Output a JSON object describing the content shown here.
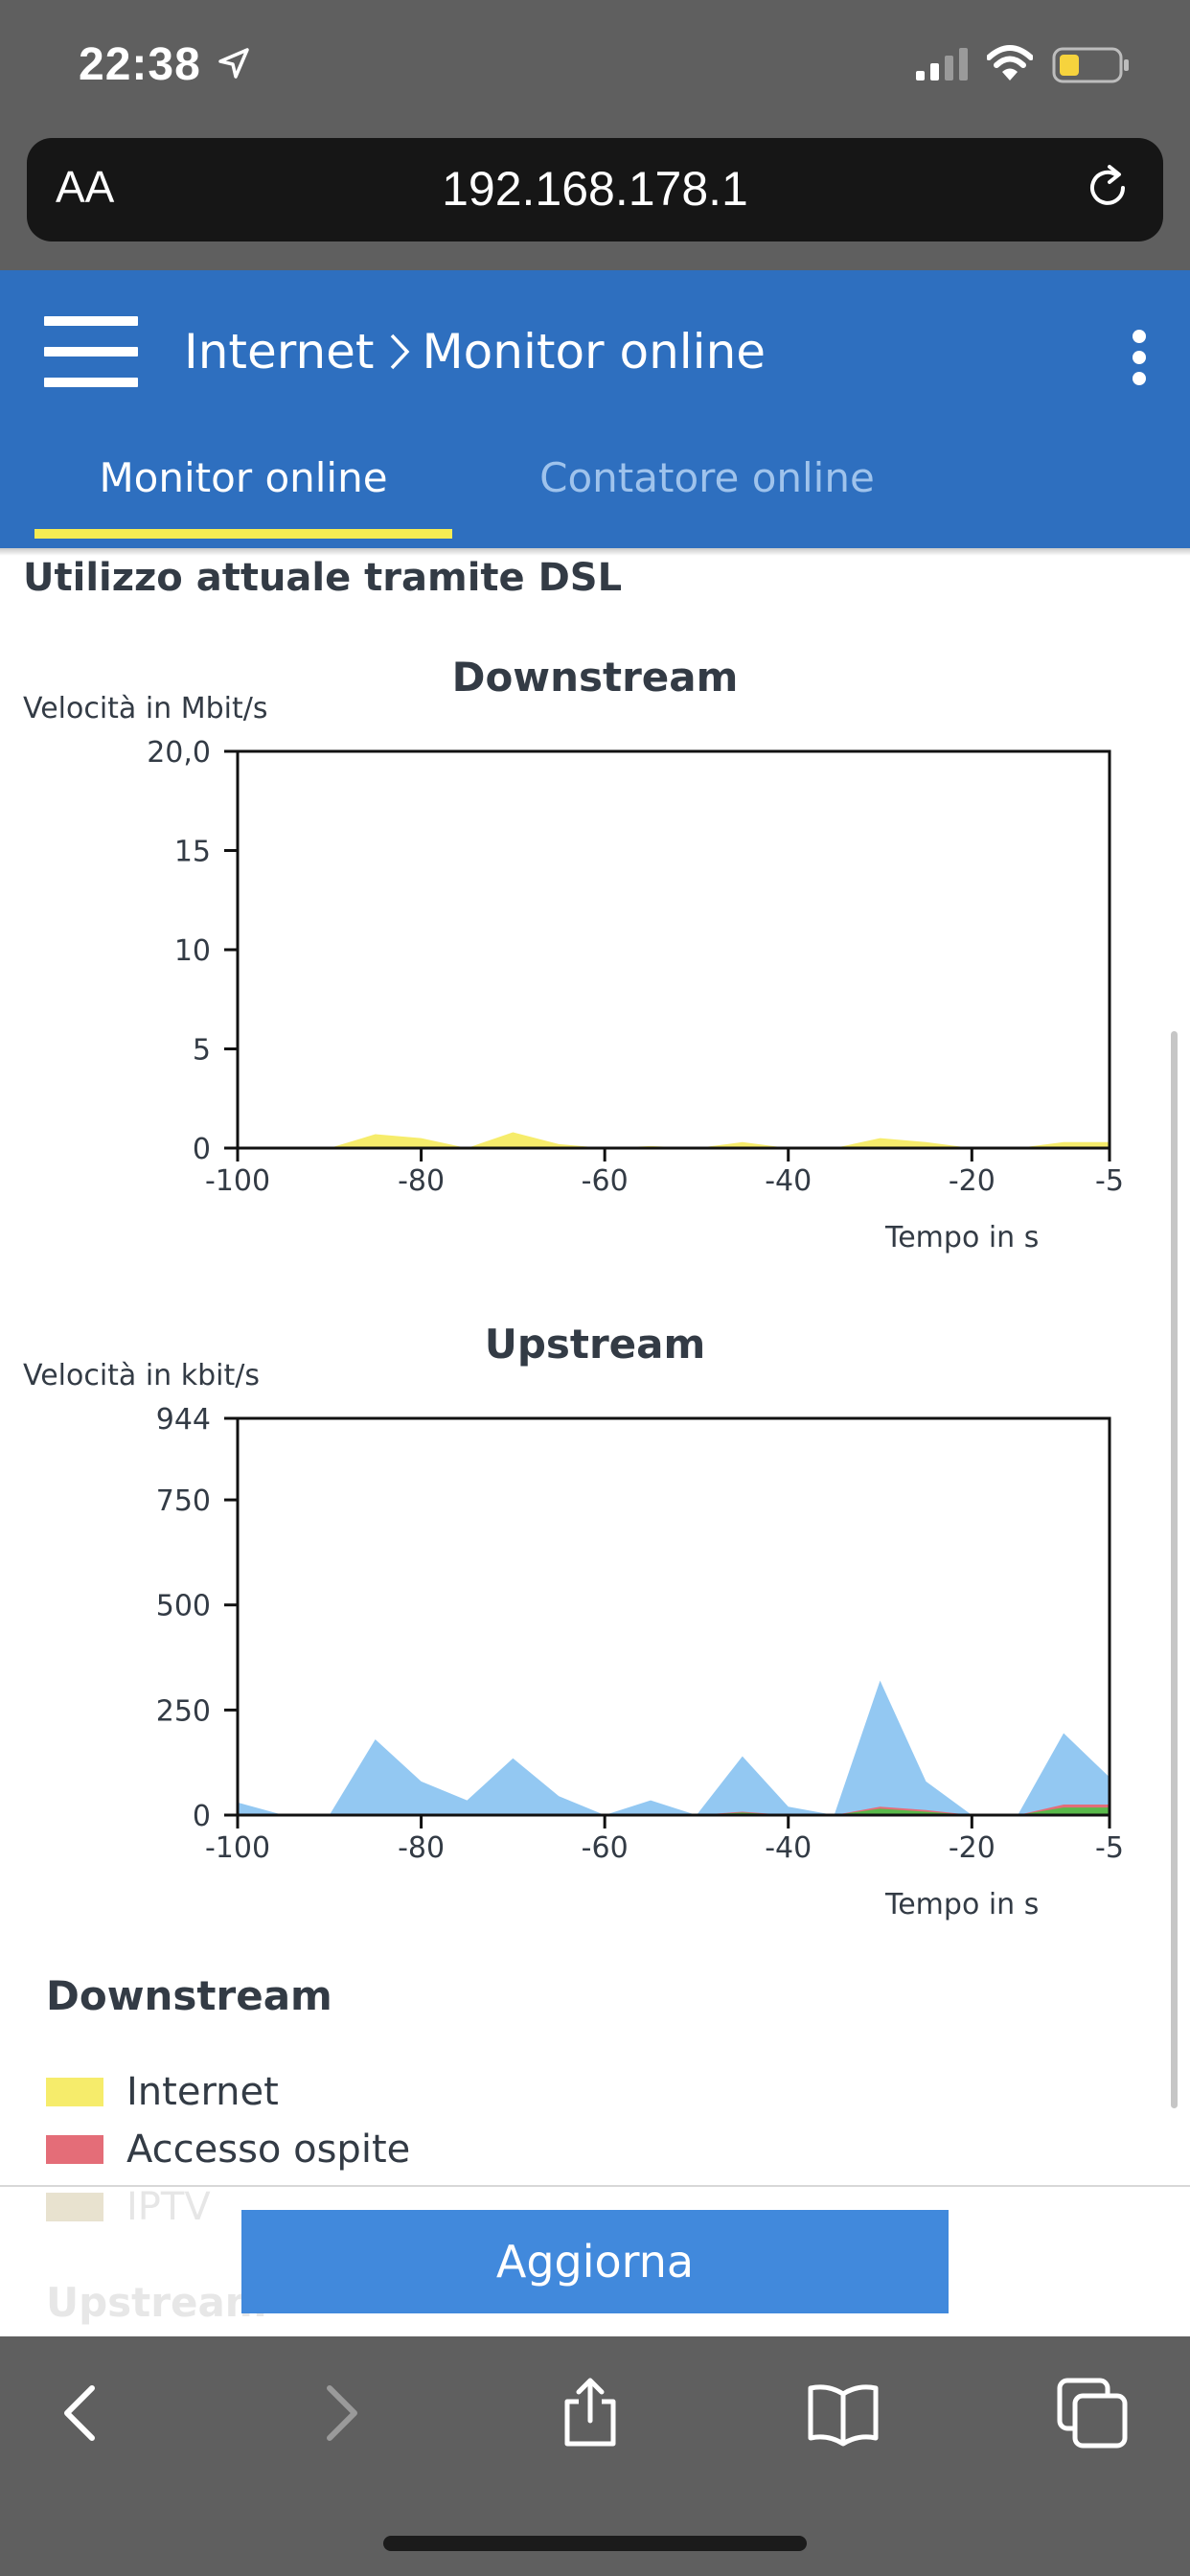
{
  "status_bar": {
    "time": "22:38"
  },
  "browser": {
    "text_size_label": "AA",
    "url": "192.168.178.1"
  },
  "header": {
    "breadcrumb": [
      "Internet",
      "Monitor online"
    ],
    "tabs": [
      {
        "label": "Monitor online",
        "active": true
      },
      {
        "label": "Contatore online",
        "active": false
      }
    ]
  },
  "section_title": "Utilizzo attuale tramite DSL",
  "chart_data": [
    {
      "type": "area",
      "title": "Downstream",
      "ylabel": "Velocità in Mbit/s",
      "xlabel": "Tempo in s",
      "xlim": [
        -100,
        -5
      ],
      "ylim": [
        0,
        20
      ],
      "x_ticks": [
        "-100",
        "-80",
        "-60",
        "-40",
        "-20",
        "-5"
      ],
      "y_ticks": [
        "0",
        "5",
        "10",
        "15",
        "20,0"
      ],
      "x": [
        -100,
        -95,
        -90,
        -85,
        -80,
        -75,
        -70,
        -65,
        -60,
        -55,
        -50,
        -45,
        -40,
        -35,
        -30,
        -25,
        -20,
        -15,
        -10,
        -5
      ],
      "series": [
        {
          "name": "Internet",
          "color": "#f6ec6b",
          "values": [
            0,
            0,
            0,
            0.7,
            0.5,
            0,
            0.8,
            0.2,
            0,
            0.1,
            0,
            0.3,
            0,
            0,
            0.5,
            0.3,
            0,
            0,
            0.3,
            0.3
          ]
        }
      ]
    },
    {
      "type": "area",
      "title": "Upstream",
      "ylabel": "Velocità in kbit/s",
      "xlabel": "Tempo in s",
      "xlim": [
        -100,
        -5
      ],
      "ylim": [
        0,
        944
      ],
      "x_ticks": [
        "-100",
        "-80",
        "-60",
        "-40",
        "-20",
        "-5"
      ],
      "y_ticks": [
        "0",
        "250",
        "500",
        "750",
        "944"
      ],
      "x": [
        -100,
        -95,
        -90,
        -85,
        -80,
        -75,
        -70,
        -65,
        -60,
        -55,
        -50,
        -45,
        -40,
        -35,
        -30,
        -25,
        -20,
        -15,
        -10,
        -5
      ],
      "series": [
        {
          "name": "Internet",
          "color": "#93c8f2",
          "values": [
            30,
            0,
            0,
            180,
            80,
            35,
            135,
            45,
            0,
            35,
            0,
            140,
            20,
            0,
            320,
            80,
            0,
            0,
            195,
            90
          ]
        },
        {
          "name": "Accesso ospite",
          "color": "#e46d78",
          "values": [
            0,
            0,
            0,
            0,
            0,
            0,
            0,
            0,
            0,
            0,
            0,
            8,
            0,
            0,
            20,
            12,
            0,
            0,
            25,
            25
          ]
        },
        {
          "name": "IPTV",
          "color": "#59b94a",
          "values": [
            0,
            0,
            0,
            0,
            0,
            0,
            0,
            0,
            0,
            0,
            0,
            6,
            0,
            0,
            15,
            8,
            0,
            0,
            18,
            18
          ]
        }
      ]
    }
  ],
  "legend": {
    "downstream_title": "Downstream",
    "downstream_items": [
      {
        "label": "Internet",
        "color": "#f6ec6b"
      },
      {
        "label": "Accesso ospite",
        "color": "#e46d78"
      },
      {
        "label": "IPTV",
        "color": "#e8e2cf"
      }
    ],
    "upstream_title": "Upstream"
  },
  "refresh_button_label": "Aggiorna"
}
